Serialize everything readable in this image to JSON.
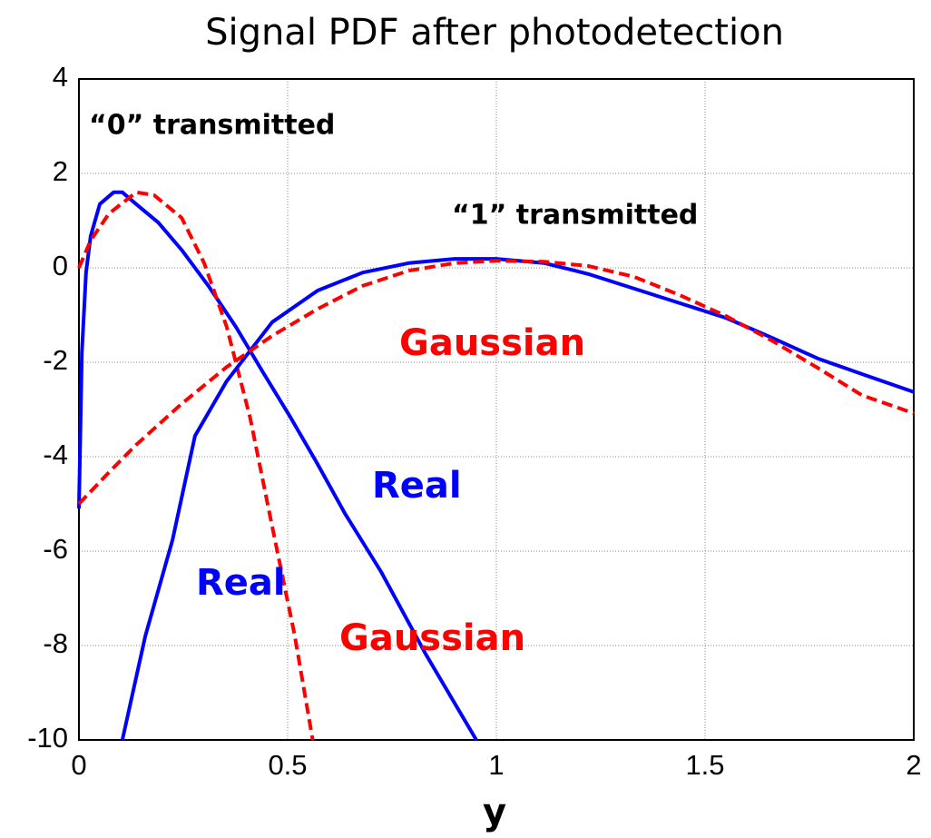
{
  "chart_data": {
    "type": "line",
    "title": "Signal PDF after photodetection",
    "xlabel": "y",
    "xlim": [
      0,
      2
    ],
    "xticks": [
      0,
      0.5,
      1,
      1.5,
      2
    ],
    "ylim": [
      -10,
      4
    ],
    "yticks": [
      4,
      2,
      0,
      -2,
      -4,
      -6,
      -8,
      -10
    ],
    "grid": true,
    "series": [
      {
        "color": "#0000ff",
        "dash": false,
        "x": [
          0,
          0.007,
          0.017,
          0.028,
          0.05,
          0.083,
          0.104,
          0.137,
          0.19,
          0.246,
          0.31,
          0.376,
          0.44,
          0.507,
          0.57,
          0.637,
          0.724,
          0.83,
          0.952
        ],
        "values": [
          -5.1,
          -1.8,
          -0.1,
          0.67,
          1.35,
          1.6,
          1.6,
          1.35,
          0.96,
          0.38,
          -0.38,
          -1.25,
          -2.2,
          -3.17,
          -4.13,
          -5.2,
          -6.44,
          -8.17,
          -10
        ]
      },
      {
        "color": "#ff0000",
        "dash": true,
        "x": [
          0,
          0.028,
          0.072,
          0.137,
          0.18,
          0.246,
          0.3,
          0.354,
          0.41,
          0.463,
          0.517,
          0.56
        ],
        "values": [
          0,
          0.58,
          1.15,
          1.6,
          1.54,
          1.06,
          0.1,
          -1.25,
          -3.17,
          -5.48,
          -7.79,
          -10
        ]
      },
      {
        "color": "#0000ff",
        "dash": false,
        "x": [
          0.104,
          0.159,
          0.224,
          0.278,
          0.354,
          0.463,
          0.572,
          0.68,
          0.79,
          0.9,
          1.0,
          1.115,
          1.22,
          1.33,
          1.55,
          1.66,
          1.77,
          1.876,
          2
        ],
        "values": [
          -10,
          -7.8,
          -5.77,
          -3.56,
          -2.4,
          -1.15,
          -0.48,
          -0.1,
          0.1,
          0.19,
          0.19,
          0.1,
          -0.13,
          -0.44,
          -1.06,
          -1.48,
          -1.92,
          -2.25,
          -2.63
        ]
      },
      {
        "color": "#ff0000",
        "dash": true,
        "x": [
          0,
          0.072,
          0.137,
          0.246,
          0.354,
          0.463,
          0.572,
          0.68,
          0.79,
          0.9,
          1.0,
          1.115,
          1.22,
          1.33,
          1.44,
          1.55,
          1.66,
          1.77,
          1.876,
          2
        ],
        "values": [
          -5.0,
          -4.33,
          -3.75,
          -2.88,
          -2.1,
          -1.44,
          -0.87,
          -0.38,
          -0.06,
          0.1,
          0.15,
          0.13,
          0.04,
          -0.19,
          -0.58,
          -1.02,
          -1.54,
          -2.12,
          -2.7,
          -3.08
        ]
      }
    ],
    "annotations": [
      {
        "text": "“0” transmitted",
        "color": "#000000"
      },
      {
        "text": "“1” transmitted",
        "color": "#000000"
      },
      {
        "text": "Gaussian",
        "color": "#ff0000"
      },
      {
        "text": "Real",
        "color": "#0000ff"
      },
      {
        "text": "Real",
        "color": "#0000ff"
      },
      {
        "text": "Gaussian",
        "color": "#ff0000"
      }
    ]
  }
}
